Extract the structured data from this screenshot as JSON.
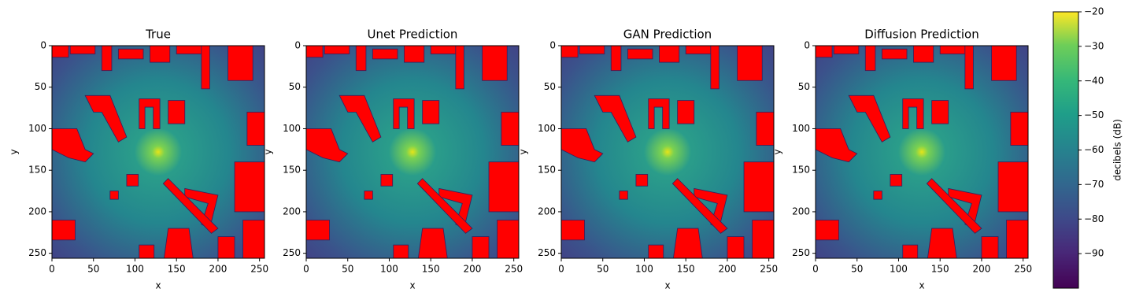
{
  "chart_data": [
    {
      "type": "image",
      "title": "True",
      "xlabel": "x",
      "ylabel": "y",
      "xlim": [
        0,
        256
      ],
      "ylim": [
        256,
        0
      ],
      "xticks": [
        0,
        50,
        100,
        150,
        200,
        250
      ],
      "yticks": [
        0,
        50,
        100,
        150,
        200,
        250
      ]
    },
    {
      "type": "image",
      "title": "Unet Prediction",
      "xlabel": "x",
      "ylabel": "y",
      "xlim": [
        0,
        256
      ],
      "ylim": [
        256,
        0
      ],
      "xticks": [
        0,
        50,
        100,
        150,
        200,
        250
      ],
      "yticks": [
        0,
        50,
        100,
        150,
        200,
        250
      ]
    },
    {
      "type": "image",
      "title": "GAN Prediction",
      "xlabel": "x",
      "ylabel": "y",
      "xlim": [
        0,
        256
      ],
      "ylim": [
        256,
        0
      ],
      "xticks": [
        0,
        50,
        100,
        150,
        200,
        250
      ],
      "yticks": [
        0,
        50,
        100,
        150,
        200,
        250
      ]
    },
    {
      "type": "image",
      "title": "Diffusion Prediction",
      "xlabel": "x",
      "ylabel": "y",
      "xlim": [
        0,
        256
      ],
      "ylim": [
        256,
        0
      ],
      "xticks": [
        0,
        50,
        100,
        150,
        200,
        250
      ],
      "yticks": [
        0,
        50,
        100,
        150,
        200,
        250
      ]
    },
    {
      "type": "colorbar",
      "label": "decibels (dB)",
      "ylim": [
        -100,
        -20
      ],
      "yticks": [
        {
          "value": -20,
          "label": "−20"
        },
        {
          "value": -30,
          "label": "−30"
        },
        {
          "value": -40,
          "label": "−40"
        },
        {
          "value": -50,
          "label": "−50"
        },
        {
          "value": -60,
          "label": "−60"
        },
        {
          "value": -70,
          "label": "−70"
        },
        {
          "value": -80,
          "label": "−80"
        },
        {
          "value": -90,
          "label": "−90"
        }
      ]
    }
  ]
}
